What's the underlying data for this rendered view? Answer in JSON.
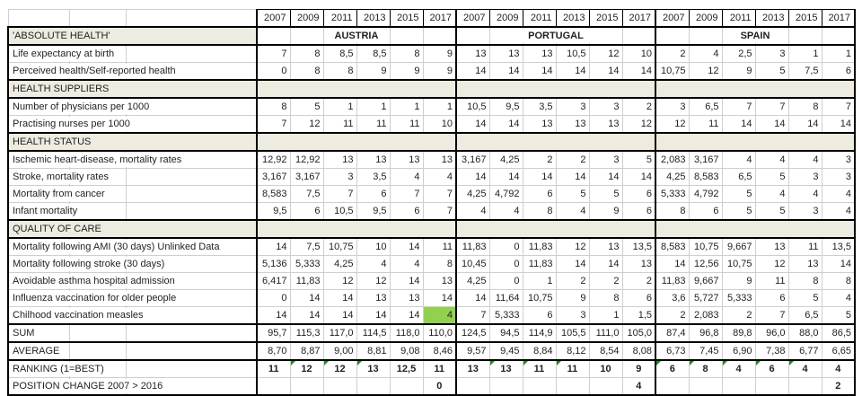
{
  "years": [
    "2007",
    "2009",
    "2011",
    "2013",
    "2015",
    "2017"
  ],
  "countries": [
    "AUSTRIA",
    "PORTUGAL",
    "SPAIN"
  ],
  "colors": {
    "section_background": "#EEECE1",
    "highlight_green": "#92D050",
    "error_flag_green": "#1E8A1E",
    "gridline": "#D0CECE",
    "section_border": "#000000"
  },
  "rows": [
    {
      "kind": "country-section",
      "label": "'ABSOLUTE HEALTH'"
    },
    {
      "kind": "data",
      "label": "Life expectancy at birth",
      "values": [
        [
          "7",
          "8",
          "8,5",
          "8,5",
          "8",
          "9"
        ],
        [
          "13",
          "13",
          "13",
          "10,5",
          "12",
          "10"
        ],
        [
          "2",
          "4",
          "2,5",
          "3",
          "1",
          "1"
        ]
      ]
    },
    {
      "kind": "data",
      "label": "Perceived health/Self-reported health",
      "values": [
        [
          "0",
          "8",
          "8",
          "9",
          "9",
          "9"
        ],
        [
          "14",
          "14",
          "14",
          "14",
          "14",
          "14"
        ],
        [
          "10,75",
          "12",
          "9",
          "5",
          "7,5",
          "6"
        ]
      ]
    },
    {
      "kind": "section",
      "label": "HEALTH SUPPLIERS"
    },
    {
      "kind": "data",
      "label": "Number of physicians per 1000",
      "values": [
        [
          "8",
          "5",
          "1",
          "1",
          "1",
          "1"
        ],
        [
          "10,5",
          "9,5",
          "3,5",
          "3",
          "3",
          "2"
        ],
        [
          "3",
          "6,5",
          "7",
          "7",
          "8",
          "7"
        ]
      ]
    },
    {
      "kind": "data",
      "label": "Practising nurses per 1000",
      "values": [
        [
          "7",
          "12",
          "11",
          "11",
          "11",
          "10"
        ],
        [
          "14",
          "14",
          "13",
          "13",
          "13",
          "12"
        ],
        [
          "12",
          "11",
          "14",
          "14",
          "14",
          "14"
        ]
      ]
    },
    {
      "kind": "section",
      "label": "HEALTH STATUS"
    },
    {
      "kind": "data",
      "label": "Ischemic heart-disease, mortality rates",
      "values": [
        [
          "12,92",
          "12,92",
          "13",
          "13",
          "13",
          "13"
        ],
        [
          "3,167",
          "4,25",
          "2",
          "2",
          "3",
          "5"
        ],
        [
          "2,083",
          "3,167",
          "4",
          "4",
          "4",
          "3"
        ]
      ]
    },
    {
      "kind": "data",
      "label": "Stroke, mortality rates",
      "values": [
        [
          "3,167",
          "3,167",
          "3",
          "3,5",
          "4",
          "4"
        ],
        [
          "14",
          "14",
          "14",
          "14",
          "14",
          "14"
        ],
        [
          "4,25",
          "8,583",
          "6,5",
          "5",
          "3",
          "3"
        ]
      ]
    },
    {
      "kind": "data",
      "label": "Mortality from cancer",
      "values": [
        [
          "8,583",
          "7,5",
          "7",
          "6",
          "7",
          "7"
        ],
        [
          "4,25",
          "4,792",
          "6",
          "5",
          "5",
          "6"
        ],
        [
          "5,333",
          "4,792",
          "5",
          "4",
          "4",
          "4"
        ]
      ]
    },
    {
      "kind": "data",
      "label": "Infant mortality",
      "values": [
        [
          "9,5",
          "6",
          "10,5",
          "9,5",
          "6",
          "7"
        ],
        [
          "4",
          "4",
          "8",
          "4",
          "9",
          "6"
        ],
        [
          "8",
          "6",
          "5",
          "5",
          "3",
          "4"
        ]
      ]
    },
    {
      "kind": "section",
      "label": "QUALITY OF CARE"
    },
    {
      "kind": "data",
      "label": "Mortality following AMI (30 days) Unlinked Data",
      "values": [
        [
          "14",
          "7,5",
          "10,75",
          "10",
          "14",
          "11"
        ],
        [
          "11,83",
          "0",
          "11,83",
          "12",
          "13",
          "13,5"
        ],
        [
          "8,583",
          "10,75",
          "9,667",
          "13",
          "11",
          "13,5"
        ]
      ]
    },
    {
      "kind": "data",
      "label": "Mortality following stroke (30 days)",
      "values": [
        [
          "5,136",
          "5,333",
          "4,25",
          "4",
          "4",
          "8"
        ],
        [
          "10,45",
          "0",
          "11,83",
          "14",
          "14",
          "13"
        ],
        [
          "14",
          "12,56",
          "10,75",
          "12",
          "13",
          "14"
        ]
      ]
    },
    {
      "kind": "data",
      "label": "Avoidable asthma hospital admission",
      "values": [
        [
          "6,417",
          "11,83",
          "12",
          "12",
          "14",
          "13"
        ],
        [
          "4,25",
          "0",
          "1",
          "2",
          "2",
          "2"
        ],
        [
          "11,83",
          "9,667",
          "9",
          "11",
          "8",
          "8"
        ]
      ]
    },
    {
      "kind": "data",
      "label": "Influenza vaccination for older people",
      "values": [
        [
          "0",
          "14",
          "14",
          "13",
          "13",
          "14"
        ],
        [
          "14",
          "11,64",
          "10,75",
          "9",
          "8",
          "6"
        ],
        [
          "3,6",
          "5,727",
          "5,333",
          "6",
          "5",
          "4"
        ]
      ]
    },
    {
      "kind": "data",
      "label": "Chilhood vaccination measles",
      "values": [
        [
          "14",
          "14",
          "14",
          "14",
          "14",
          "4"
        ],
        [
          "7",
          "5,333",
          "6",
          "3",
          "1",
          "1,5"
        ],
        [
          "2",
          "2,083",
          "2",
          "7",
          "6,5",
          "5"
        ]
      ],
      "highlight": {
        "group": 0,
        "col": 5
      }
    },
    {
      "kind": "sum",
      "label": "SUM",
      "values": [
        [
          "95,7",
          "115,3",
          "117,0",
          "114,5",
          "118,0",
          "110,0"
        ],
        [
          "124,5",
          "94,5",
          "114,9",
          "105,5",
          "111,0",
          "105,0"
        ],
        [
          "87,4",
          "96,8",
          "89,8",
          "96,0",
          "88,0",
          "86,5"
        ]
      ]
    },
    {
      "kind": "average",
      "label": "AVERAGE",
      "values": [
        [
          "8,70",
          "8,87",
          "9,00",
          "8,81",
          "9,08",
          "8,46"
        ],
        [
          "9,57",
          "9,45",
          "8,84",
          "8,12",
          "8,54",
          "8,08"
        ],
        [
          "6,73",
          "7,45",
          "6,90",
          "7,38",
          "6,77",
          "6,65"
        ]
      ]
    },
    {
      "kind": "ranking",
      "label": "RANKING (1=BEST)",
      "values": [
        [
          "11",
          "12",
          "12",
          "13",
          "12,5",
          "11"
        ],
        [
          "13",
          "13",
          "11",
          "11",
          "10",
          "9"
        ],
        [
          "6",
          "8",
          "4",
          "6",
          "4",
          "4"
        ]
      ],
      "flags": [
        [
          false,
          true,
          true,
          true,
          false,
          false
        ],
        [
          false,
          true,
          true,
          true,
          false,
          false
        ],
        [
          true,
          true,
          true,
          true,
          true,
          false
        ]
      ]
    },
    {
      "kind": "position",
      "label": "POSITION CHANGE 2007 > 2016",
      "values": [
        [
          "",
          "",
          "",
          "",
          "",
          "0"
        ],
        [
          "",
          "",
          "",
          "",
          "",
          "4"
        ],
        [
          "",
          "",
          "",
          "",
          "",
          "2"
        ]
      ]
    }
  ]
}
